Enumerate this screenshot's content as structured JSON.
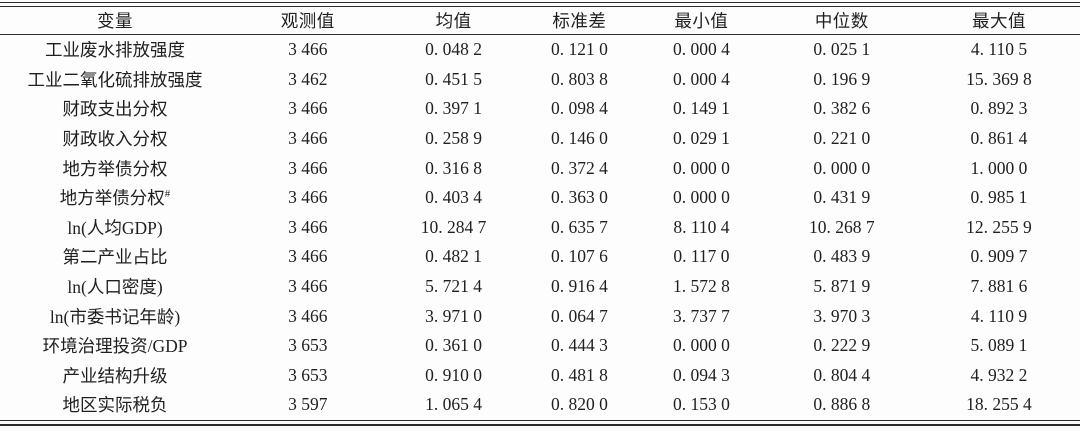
{
  "chart_data": {
    "type": "table",
    "title": "",
    "columns": [
      "变量",
      "观测值",
      "均值",
      "标准差",
      "最小值",
      "中位数",
      "最大值"
    ],
    "rows": [
      {
        "cells": [
          "工业废水排放强度",
          "3 466",
          "0. 048 2",
          "0. 121 0",
          "0. 000 4",
          "0. 025 1",
          "4. 110 5"
        ]
      },
      {
        "cells": [
          "工业二氧化硫排放强度",
          "3 462",
          "0. 451 5",
          "0. 803 8",
          "0. 000 4",
          "0. 196 9",
          "15. 369 8"
        ]
      },
      {
        "cells": [
          "财政支出分权",
          "3 466",
          "0. 397 1",
          "0. 098 4",
          "0. 149 1",
          "0. 382 6",
          "0. 892 3"
        ]
      },
      {
        "cells": [
          "财政收入分权",
          "3 466",
          "0. 258 9",
          "0. 146 0",
          "0. 029 1",
          "0. 221 0",
          "0. 861 4"
        ]
      },
      {
        "cells": [
          "地方举债分权",
          "3 466",
          "0. 316 8",
          "0. 372 4",
          "0. 000 0",
          "0. 000 0",
          "1. 000 0"
        ]
      },
      {
        "cells": [
          "地方举债分权",
          "3 466",
          "0. 403 4",
          "0. 363 0",
          "0. 000 0",
          "0. 431 9",
          "0. 985 1"
        ],
        "sup": "#"
      },
      {
        "cells": [
          "ln(人均GDP)",
          "3 466",
          "10. 284 7",
          "0. 635 7",
          "8. 110 4",
          "10. 268 7",
          "12. 255 9"
        ]
      },
      {
        "cells": [
          "第二产业占比",
          "3 466",
          "0. 482 1",
          "0. 107 6",
          "0. 117 0",
          "0. 483 9",
          "0. 909 7"
        ]
      },
      {
        "cells": [
          "ln(人口密度)",
          "3 466",
          "5. 721 4",
          "0. 916 4",
          "1. 572 8",
          "5. 871 9",
          "7. 881 6"
        ]
      },
      {
        "cells": [
          "ln(市委书记年龄)",
          "3 466",
          "3. 971 0",
          "0. 064 7",
          "3. 737 7",
          "3. 970 3",
          "4. 110 9"
        ]
      },
      {
        "cells": [
          "环境治理投资/GDP",
          "3 653",
          "0. 361 0",
          "0. 444 3",
          "0. 000 0",
          "0. 222 9",
          "5. 089 1"
        ]
      },
      {
        "cells": [
          "产业结构升级",
          "3 653",
          "0. 910 0",
          "0. 481 8",
          "0. 094 3",
          "0. 804 4",
          "4. 932 2"
        ]
      },
      {
        "cells": [
          "地区实际税负",
          "3 597",
          "1. 065 4",
          "0. 820 0",
          "0. 153 0",
          "0. 886 8",
          "18. 255 4"
        ]
      }
    ],
    "layout": {
      "column_widths_percent": [
        21.3,
        14.4,
        12.6,
        10.7,
        11.9,
        14.1,
        15.0
      ],
      "rule_color": "#2d2d2d",
      "text_color": "#1f1f1f",
      "background": "#fdfdfd",
      "style": "three-line academic table with double top and bottom rules"
    }
  }
}
